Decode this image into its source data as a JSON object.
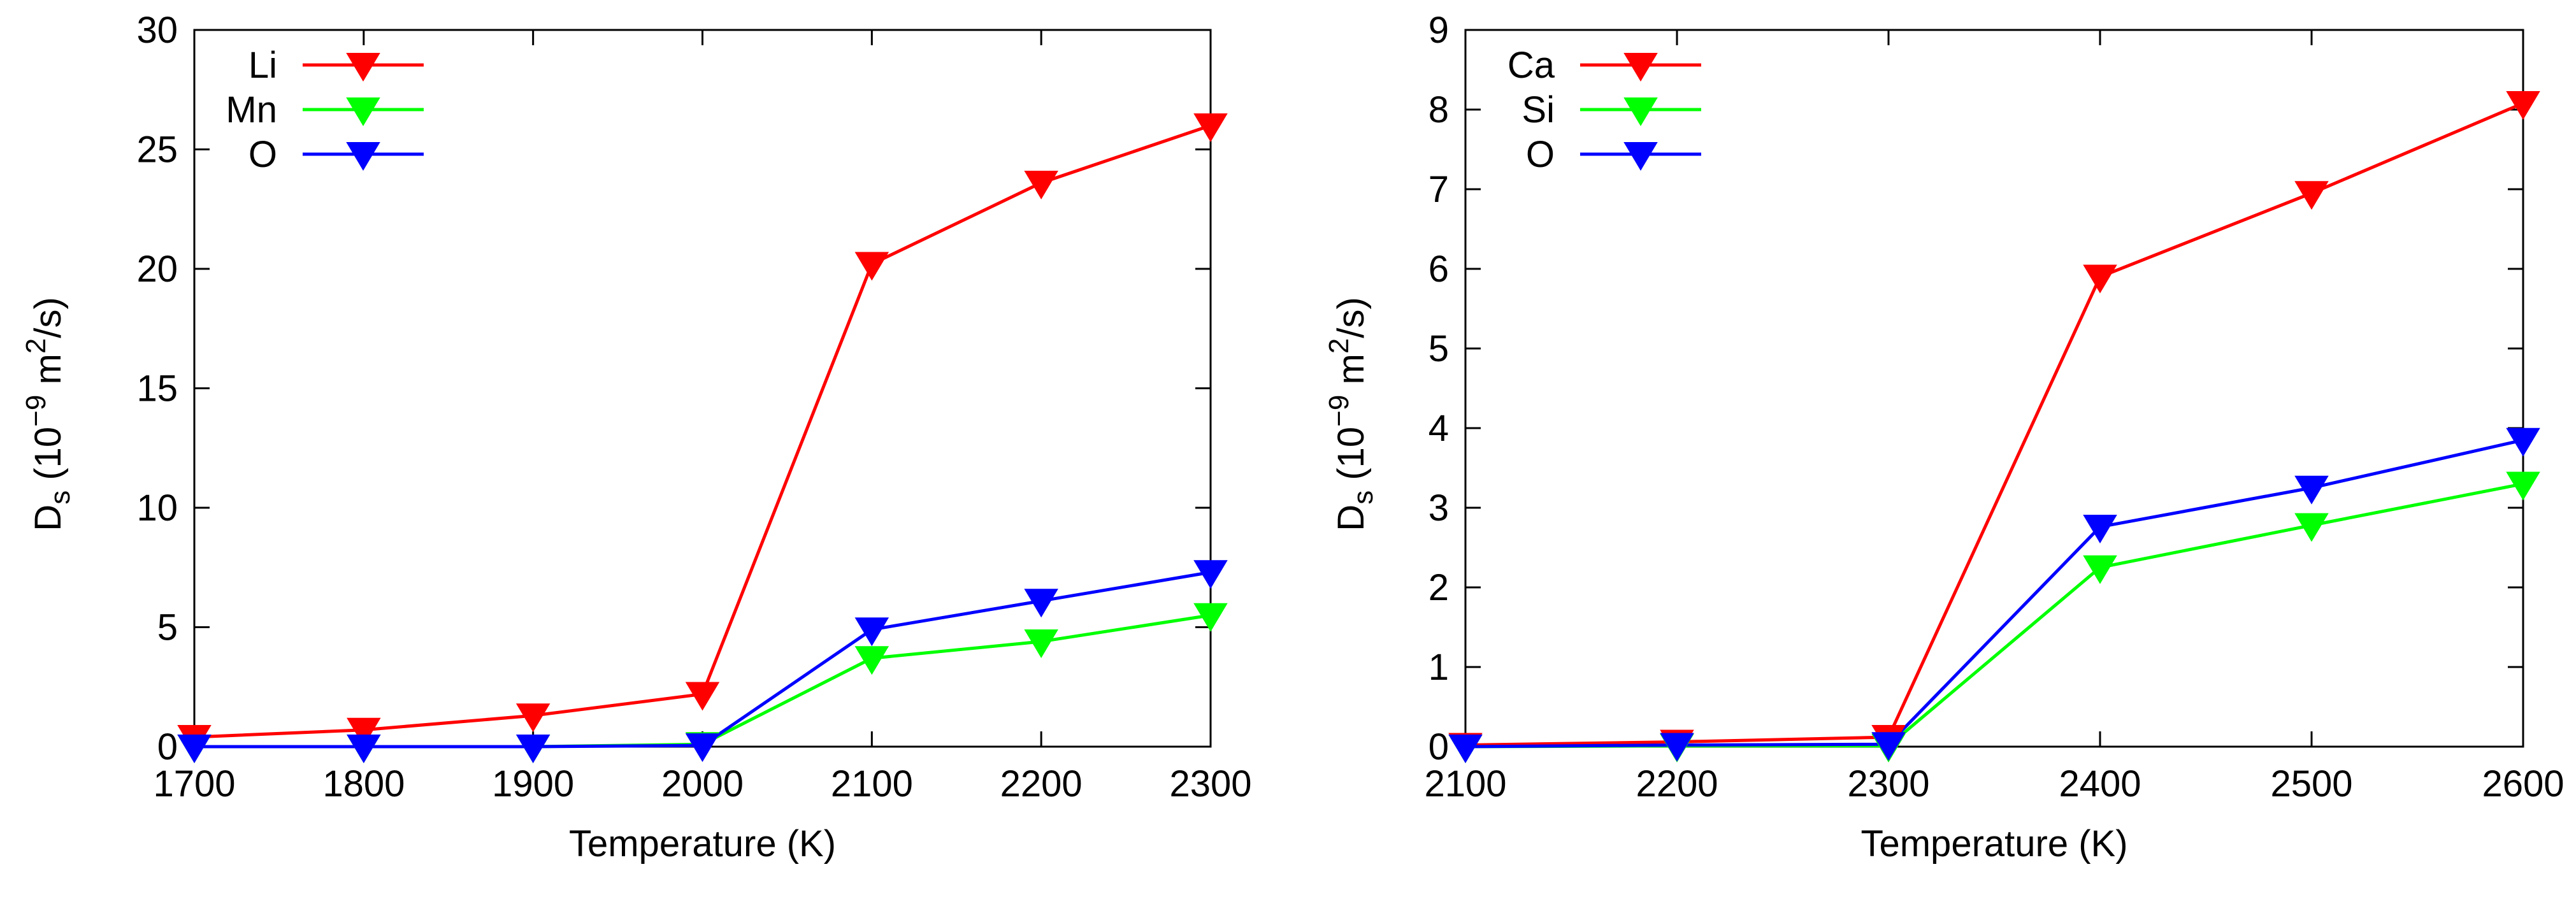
{
  "chart_data": [
    {
      "type": "line",
      "title": "",
      "xlabel": "Temperature (K)",
      "ylabel": {
        "d": "D",
        "sub": "s",
        "open": " (10",
        "exp": "−9",
        "unit": " m",
        "exp2": "2",
        "close": "/s)"
      },
      "xlim": [
        1700,
        2300
      ],
      "ylim": [
        0,
        30
      ],
      "xticks": [
        1700,
        1800,
        1900,
        2000,
        2100,
        2200,
        2300
      ],
      "yticks": [
        0,
        5,
        10,
        15,
        20,
        25,
        30
      ],
      "legend_position": "top-left",
      "x": [
        1700,
        1800,
        1900,
        2000,
        2100,
        2200,
        2300
      ],
      "series": [
        {
          "name": "Li",
          "color": "#ff0000",
          "values": [
            0.4,
            0.7,
            1.3,
            2.2,
            20.2,
            23.6,
            26.0
          ]
        },
        {
          "name": "Mn",
          "color": "#00ff00",
          "values": [
            0.0,
            0.0,
            0.0,
            0.1,
            3.7,
            4.4,
            5.5
          ]
        },
        {
          "name": "O",
          "color": "#0000ff",
          "values": [
            0.0,
            0.0,
            0.0,
            0.05,
            4.9,
            6.1,
            7.3
          ]
        }
      ]
    },
    {
      "type": "line",
      "title": "",
      "xlabel": "Temperature (K)",
      "ylabel": {
        "d": "D",
        "sub": "s",
        "open": " (10",
        "exp": "−9",
        "unit": " m",
        "exp2": "2",
        "close": "/s)"
      },
      "xlim": [
        2100,
        2600
      ],
      "ylim": [
        0,
        9
      ],
      "xticks": [
        2100,
        2200,
        2300,
        2400,
        2500,
        2600
      ],
      "yticks": [
        0,
        1,
        2,
        3,
        4,
        5,
        6,
        7,
        8,
        9
      ],
      "legend_position": "top-left",
      "x": [
        2100,
        2200,
        2300,
        2400,
        2500,
        2600
      ],
      "series": [
        {
          "name": "Ca",
          "color": "#ff0000",
          "values": [
            0.02,
            0.06,
            0.12,
            5.9,
            6.95,
            8.08
          ]
        },
        {
          "name": "Si",
          "color": "#00ff00",
          "values": [
            0.0,
            0.01,
            0.01,
            2.25,
            2.78,
            3.3
          ]
        },
        {
          "name": "O",
          "color": "#0000ff",
          "values": [
            0.0,
            0.02,
            0.03,
            2.76,
            3.25,
            3.85
          ]
        }
      ]
    }
  ]
}
